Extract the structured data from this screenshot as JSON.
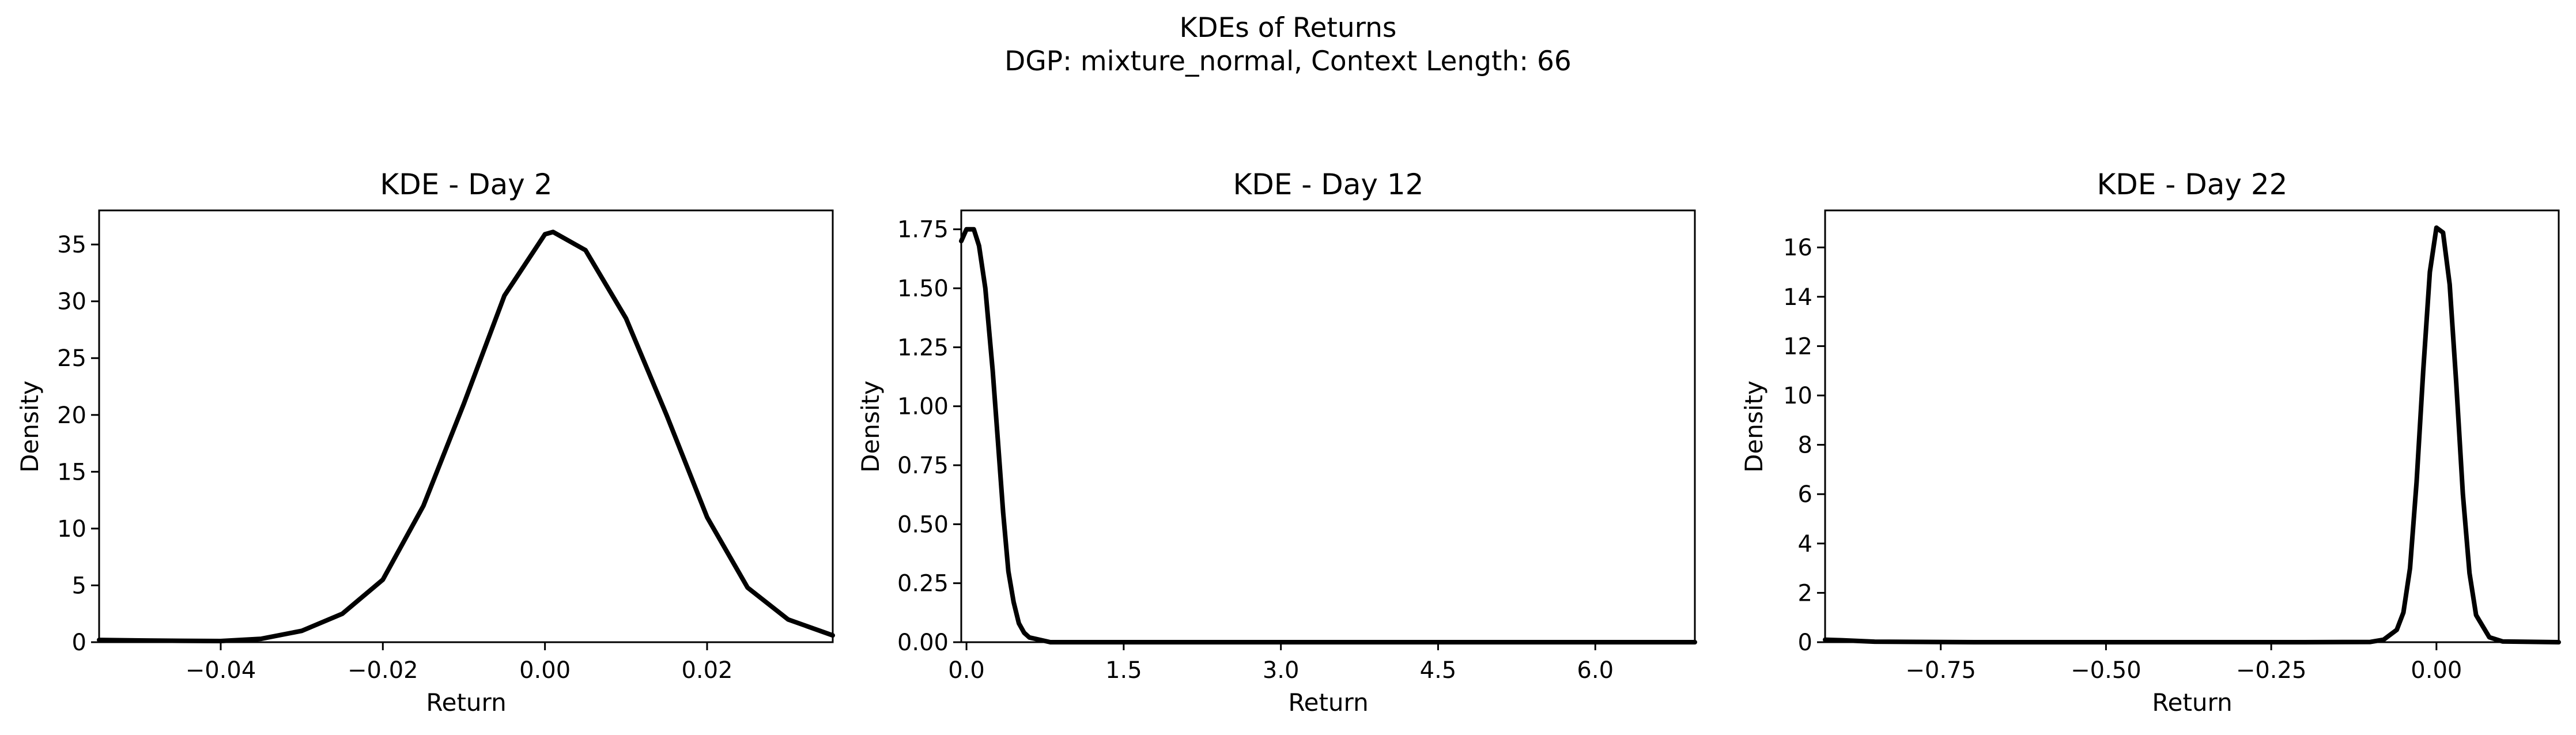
{
  "figure": {
    "title_line1": "KDEs of Returns",
    "title_line2": "DGP: mixture_normal, Context Length: 66"
  },
  "style": {
    "line_color": "#000000",
    "background": "#ffffff"
  },
  "chart_data": [
    {
      "type": "line",
      "title": "KDE - Day 2",
      "xlabel": "Return",
      "ylabel": "Density",
      "xlim": [
        -0.055,
        0.0355
      ],
      "ylim": [
        0,
        38
      ],
      "xticks": [
        -0.04,
        -0.02,
        0.0,
        0.02
      ],
      "xtick_labels": [
        "−0.04",
        "−0.02",
        "0.00",
        "0.02"
      ],
      "yticks": [
        0,
        5,
        10,
        15,
        20,
        25,
        30,
        35
      ],
      "ytick_labels": [
        "0",
        "5",
        "10",
        "15",
        "20",
        "25",
        "30",
        "35"
      ],
      "grid": false,
      "series": [
        {
          "x": [
            -0.055,
            -0.05,
            -0.045,
            -0.04,
            -0.035,
            -0.03,
            -0.025,
            -0.02,
            -0.015,
            -0.01,
            -0.005,
            0.0,
            0.001,
            0.005,
            0.01,
            0.015,
            0.02,
            0.025,
            0.03,
            0.0355
          ],
          "y": [
            0.2,
            0.15,
            0.12,
            0.1,
            0.3,
            1.0,
            2.5,
            5.5,
            12.0,
            21.0,
            30.5,
            35.9,
            36.1,
            34.5,
            28.5,
            20.0,
            11.0,
            4.8,
            2.0,
            0.6
          ]
        }
      ]
    },
    {
      "type": "line",
      "title": "KDE - Day 12",
      "xlabel": "Return",
      "ylabel": "Density",
      "xlim": [
        -0.05,
        6.95
      ],
      "ylim": [
        0,
        1.83
      ],
      "xticks": [
        0.0,
        1.5,
        3.0,
        4.5,
        6.0
      ],
      "xtick_labels": [
        "0.0",
        "1.5",
        "3.0",
        "4.5",
        "6.0"
      ],
      "yticks": [
        0,
        0.25,
        0.5,
        0.75,
        1.0,
        1.25,
        1.5,
        1.75
      ],
      "ytick_labels": [
        "0.00",
        "0.25",
        "0.50",
        "0.75",
        "1.00",
        "1.25",
        "1.50",
        "1.75"
      ],
      "grid": false,
      "series": [
        {
          "x": [
            -0.05,
            0.0,
            0.03,
            0.07,
            0.12,
            0.18,
            0.25,
            0.3,
            0.35,
            0.4,
            0.45,
            0.5,
            0.55,
            0.6,
            0.7,
            0.8,
            1.0,
            2.0,
            4.0,
            6.95
          ],
          "y": [
            1.7,
            1.75,
            1.75,
            1.75,
            1.68,
            1.5,
            1.15,
            0.85,
            0.55,
            0.3,
            0.17,
            0.08,
            0.04,
            0.02,
            0.01,
            0.0,
            0.0,
            0.0,
            0.0,
            0.0
          ]
        }
      ]
    },
    {
      "type": "line",
      "title": "KDE - Day 22",
      "xlabel": "Return",
      "ylabel": "Density",
      "xlim": [
        -0.925,
        0.185
      ],
      "ylim": [
        0,
        17.5
      ],
      "xticks": [
        -0.75,
        -0.5,
        -0.25,
        0.0
      ],
      "xtick_labels": [
        "−0.75",
        "−0.50",
        "−0.25",
        "0.00"
      ],
      "yticks": [
        0,
        2,
        4,
        6,
        8,
        10,
        12,
        14,
        16
      ],
      "ytick_labels": [
        "0",
        "2",
        "4",
        "6",
        "8",
        "10",
        "12",
        "14",
        "16"
      ],
      "grid": false,
      "series": [
        {
          "x": [
            -0.925,
            -0.9,
            -0.85,
            -0.7,
            -0.5,
            -0.2,
            -0.1,
            -0.08,
            -0.06,
            -0.05,
            -0.04,
            -0.03,
            -0.02,
            -0.01,
            0.0,
            0.01,
            0.02,
            0.03,
            0.04,
            0.05,
            0.06,
            0.08,
            0.1,
            0.185
          ],
          "y": [
            0.1,
            0.08,
            0.02,
            0.0,
            0.0,
            0.0,
            0.01,
            0.1,
            0.5,
            1.2,
            3.0,
            6.5,
            11.0,
            15.0,
            16.8,
            16.6,
            14.5,
            10.5,
            6.0,
            2.8,
            1.1,
            0.2,
            0.03,
            0.0
          ]
        }
      ]
    }
  ]
}
